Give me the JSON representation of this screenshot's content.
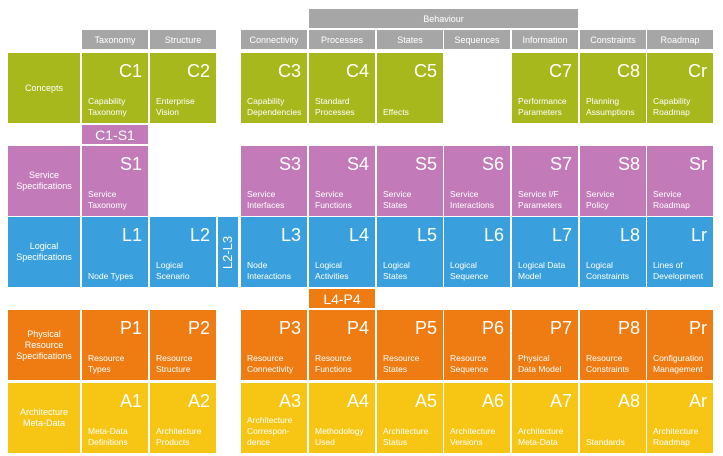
{
  "behaviour_header": "Behaviour",
  "colors": {
    "C": "#a6b81c",
    "S": "#c27bb8",
    "L": "#3aa0dd",
    "P": "#ef7c13",
    "A": "#f7c615",
    "header": "#a6a6a6"
  },
  "columns": [
    "Taxonomy",
    "Structure",
    "Connectivity",
    "Processes",
    "States",
    "Sequences",
    "Information",
    "Constraints",
    "Roadmap"
  ],
  "rows": {
    "C": {
      "label": "Concepts",
      "cells": [
        {
          "code": "C1",
          "label": "Capability\nTaxonomy"
        },
        {
          "code": "C2",
          "label": "Enterprise\nVision"
        },
        {
          "code": "C3",
          "label": "Capability\nDependencies"
        },
        {
          "code": "C4",
          "label": "Standard\nProcesses"
        },
        {
          "code": "C5",
          "label": "Effects"
        },
        null,
        {
          "code": "C7",
          "label": "Performance\nParameters"
        },
        {
          "code": "C8",
          "label": "Planning\nAssumptions"
        },
        {
          "code": "Cr",
          "label": "Capability\nRoadmap"
        }
      ]
    },
    "S": {
      "label": "Service\nSpecifications",
      "cells": [
        {
          "code": "S1",
          "label": "Service\nTaxonomy"
        },
        null,
        {
          "code": "S3",
          "label": "Service\nInterfaces"
        },
        {
          "code": "S4",
          "label": "Service\nFunctions"
        },
        {
          "code": "S5",
          "label": "Service\nStates"
        },
        {
          "code": "S6",
          "label": "Service\nInteractions"
        },
        {
          "code": "S7",
          "label": "Service I/F\nParameters"
        },
        {
          "code": "S8",
          "label": "Service\nPolicy"
        },
        {
          "code": "Sr",
          "label": "Service\nRoadmap"
        }
      ]
    },
    "L": {
      "label": "Logical\nSpecifications",
      "cells": [
        {
          "code": "L1",
          "label": "Node Types"
        },
        {
          "code": "L2",
          "label": "Logical\nScenario"
        },
        {
          "code": "L3",
          "label": "Node\nInteractions"
        },
        {
          "code": "L4",
          "label": "Logical\nActivities"
        },
        {
          "code": "L5",
          "label": "Logical\nStates"
        },
        {
          "code": "L6",
          "label": "Logical\nSequence"
        },
        {
          "code": "L7",
          "label": "Logical Data\nModel"
        },
        {
          "code": "L8",
          "label": "Logical\nConstraints"
        },
        {
          "code": "Lr",
          "label": "Lines of\nDevelopment"
        }
      ]
    },
    "P": {
      "label": "Physical\nResource\nSpecifications",
      "cells": [
        {
          "code": "P1",
          "label": "Resource\nTypes"
        },
        {
          "code": "P2",
          "label": "Resource\nStructure"
        },
        {
          "code": "P3",
          "label": "Resource\nConnectivity"
        },
        {
          "code": "P4",
          "label": "Resource\nFunctions"
        },
        {
          "code": "P5",
          "label": "Resource\nStates"
        },
        {
          "code": "P6",
          "label": "Resource\nSequence"
        },
        {
          "code": "P7",
          "label": "Physical\nData Model"
        },
        {
          "code": "P8",
          "label": "Resource\nConstraints"
        },
        {
          "code": "Pr",
          "label": "Configuration\nManagement"
        }
      ]
    },
    "A": {
      "label": "Architecture\nMeta-Data",
      "cells": [
        {
          "code": "A1",
          "label": "Meta-Data\nDefinitions"
        },
        {
          "code": "A2",
          "label": "Architecture\nProducts"
        },
        {
          "code": "A3",
          "label": "Architecture\nCorrespon-\ndence"
        },
        {
          "code": "A4",
          "label": "Methodology\nUsed"
        },
        {
          "code": "A5",
          "label": "Architecture\nStatus"
        },
        {
          "code": "A6",
          "label": "Architecture\nVersions"
        },
        {
          "code": "A7",
          "label": "Architecture\nMeta-Data"
        },
        {
          "code": "A8",
          "label": "Standards"
        },
        {
          "code": "Ar",
          "label": "Architecture\nRoadmap"
        }
      ]
    }
  },
  "extras": {
    "c1_s1": "C1-S1",
    "l2_l3": "L2-L3",
    "l4_p4": "L4-P4"
  }
}
